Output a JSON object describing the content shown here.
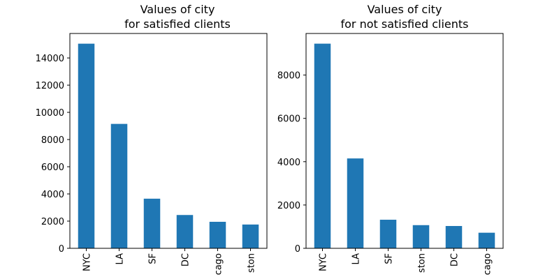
{
  "chart_data": [
    {
      "type": "bar",
      "title_line1": "Values of city",
      "title_line2": "for satisfied clients",
      "categories": [
        "NYC",
        "LA",
        "SF",
        "DC",
        "cago",
        "ston"
      ],
      "values": [
        15050,
        9150,
        3650,
        2450,
        1950,
        1750
      ],
      "ylim": [
        0,
        15800
      ],
      "yticks": [
        0,
        2000,
        4000,
        6000,
        8000,
        10000,
        12000,
        14000
      ],
      "xlabel": "",
      "ylabel": "",
      "color": "#1f77b4",
      "grid": false
    },
    {
      "type": "bar",
      "title_line1": "Values of city",
      "title_line2": "for not satisfied clients",
      "categories": [
        "NYC",
        "LA",
        "SF",
        "ston",
        "DC",
        "cago"
      ],
      "values": [
        9450,
        4150,
        1320,
        1070,
        1030,
        720
      ],
      "ylim": [
        0,
        9920
      ],
      "yticks": [
        0,
        2000,
        4000,
        6000,
        8000
      ],
      "xlabel": "",
      "ylabel": "",
      "color": "#1f77b4",
      "grid": false
    }
  ]
}
